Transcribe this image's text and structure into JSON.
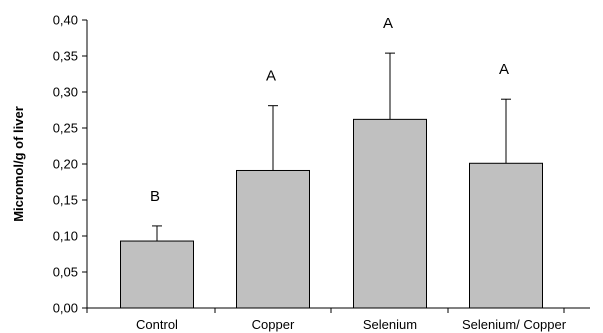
{
  "chart_data": {
    "type": "bar",
    "categories": [
      "Control",
      "Copper",
      "Selenium",
      "Selenium/ Copper"
    ],
    "values": [
      0.093,
      0.191,
      0.262,
      0.201
    ],
    "error_bars": [
      0.021,
      0.09,
      0.092,
      0.089
    ],
    "significance_labels": [
      "B",
      "A",
      "A",
      "A"
    ],
    "title": "",
    "xlabel": "",
    "ylabel": "Micromol/g of liver",
    "ylim": [
      0,
      0.4
    ],
    "yticks": [
      "0,00",
      "0,05",
      "0,10",
      "0,15",
      "0,20",
      "0,25",
      "0,30",
      "0,35",
      "0,40"
    ],
    "grid": false,
    "legend": "none",
    "colors": {
      "bar_fill": "#c0c0c0",
      "bar_stroke": "#000000",
      "axis": "#000000"
    }
  }
}
